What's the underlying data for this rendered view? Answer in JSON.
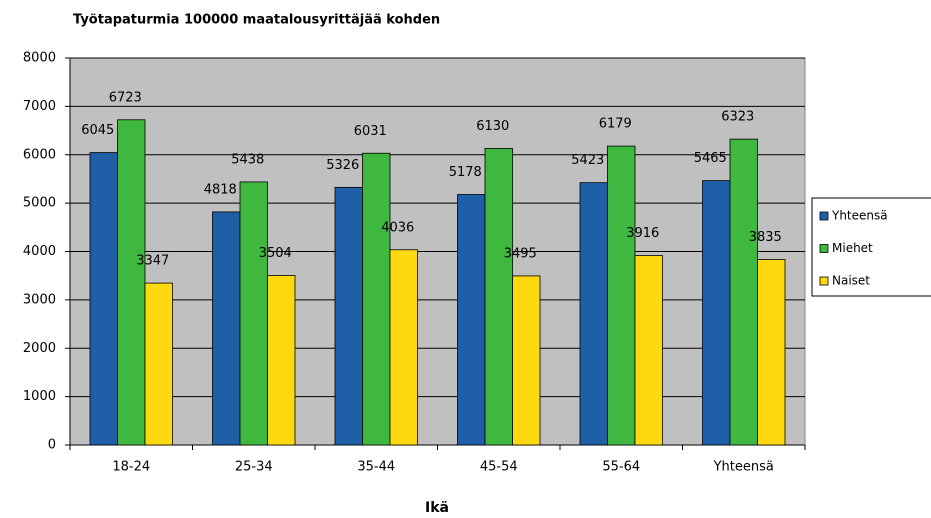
{
  "chart_data": {
    "type": "bar",
    "title": "Työtapaturmia 100000 maatalousyrittäjää kohden",
    "x_label": "Ikä",
    "categories": [
      "18-24",
      "25-34",
      "35-44",
      "45-54",
      "55-64",
      "Yhteensä"
    ],
    "series": [
      {
        "name": "Yhteensä",
        "color": "#1f5fa8",
        "values": [
          6045,
          4818,
          5326,
          5178,
          5423,
          5465
        ]
      },
      {
        "name": "Miehet",
        "color": "#3fb83f",
        "values": [
          6723,
          5438,
          6031,
          6130,
          6179,
          6323
        ]
      },
      {
        "name": "Naiset",
        "color": "#ffd90f",
        "values": [
          3347,
          3504,
          4036,
          3495,
          3916,
          3835
        ]
      }
    ],
    "ylim": [
      0,
      8000
    ],
    "yticks": [
      0,
      1000,
      2000,
      3000,
      4000,
      5000,
      6000,
      7000,
      8000
    ],
    "grid": true,
    "legend": "right"
  }
}
